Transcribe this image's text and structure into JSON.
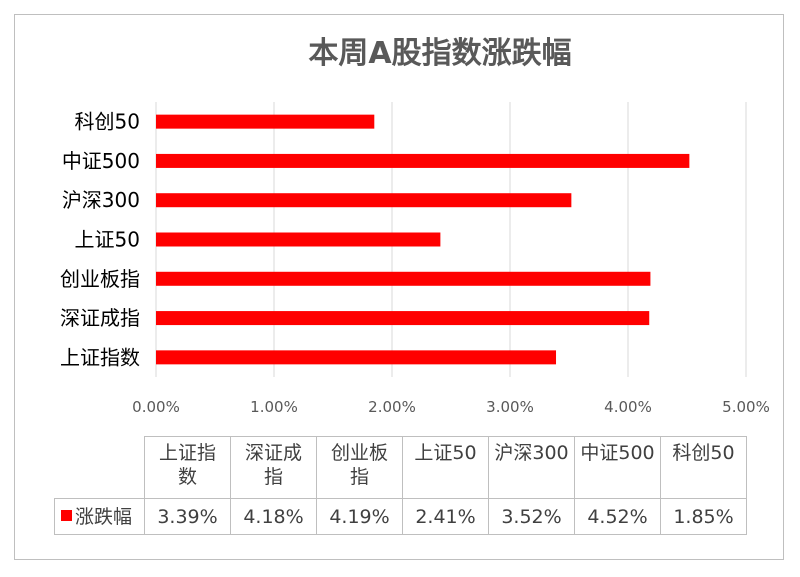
{
  "chart_data": {
    "type": "bar",
    "orientation": "horizontal",
    "title": "本周A股指数涨跌幅",
    "categories": [
      "上证指数",
      "深证成指",
      "创业板指",
      "上证50",
      "沪深300",
      "中证500",
      "科创50"
    ],
    "table_headers": [
      "上证指\n数",
      "深证成\n指",
      "创业板\n指",
      "上证50",
      "沪深300",
      "中证500",
      "科创50"
    ],
    "series": [
      {
        "name": "涨跌幅",
        "values": [
          3.39,
          4.18,
          4.19,
          2.41,
          3.52,
          4.52,
          1.85
        ],
        "labels": [
          "3.39%",
          "4.18%",
          "4.19%",
          "2.41%",
          "3.52%",
          "4.52%",
          "1.85%"
        ],
        "color": "#ff0000"
      }
    ],
    "xlim": [
      0,
      5
    ],
    "x_ticks": [
      "0.00%",
      "1.00%",
      "2.00%",
      "3.00%",
      "4.00%",
      "5.00%"
    ],
    "grid": true,
    "legend": "data-table"
  }
}
